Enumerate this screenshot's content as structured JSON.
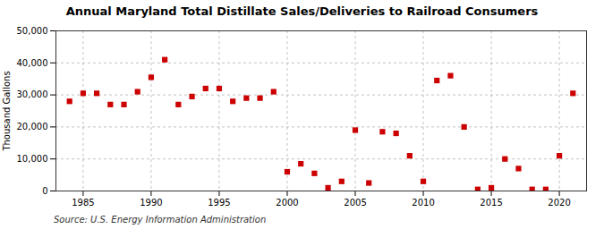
{
  "chart_data": {
    "type": "scatter",
    "title": "Annual Maryland Total Distillate Sales/Deliveries to Railroad Consumers",
    "ylabel": "Thousand Gallons",
    "annotation": "Source: U.S. Energy Information Administration",
    "x": [
      1984,
      1985,
      1986,
      1987,
      1988,
      1989,
      1990,
      1991,
      1992,
      1993,
      1994,
      1995,
      1996,
      1997,
      1998,
      1999,
      2000,
      2001,
      2002,
      2003,
      2004,
      2005,
      2006,
      2007,
      2008,
      2009,
      2010,
      2011,
      2012,
      2013,
      2014,
      2015,
      2016,
      2017,
      2018,
      2019,
      2020,
      2021
    ],
    "values": [
      28000,
      30500,
      30500,
      27000,
      27000,
      31000,
      35500,
      41000,
      27000,
      29500,
      32000,
      32000,
      28000,
      29000,
      29000,
      31000,
      6000,
      8500,
      5500,
      1000,
      3000,
      19000,
      2500,
      18500,
      18000,
      11000,
      3000,
      34500,
      36000,
      20000,
      500,
      1000,
      10000,
      7000,
      500,
      500,
      11000,
      30500
    ],
    "color": "#cc0000",
    "marker": "square",
    "grid": true,
    "xlim": [
      1983,
      2022
    ],
    "xticks": [
      1985,
      1990,
      1995,
      2000,
      2005,
      2010,
      2015,
      2020
    ],
    "ylim": [
      0,
      50000
    ],
    "yticks": [
      0,
      {
        "value": 10000,
        "label": "10,000"
      },
      {
        "value": 20000,
        "label": "20,000"
      },
      {
        "value": 30000,
        "label": "30,000"
      },
      {
        "value": 40000,
        "label": "40,000"
      },
      {
        "value": 50000,
        "label": "50,000"
      }
    ]
  }
}
